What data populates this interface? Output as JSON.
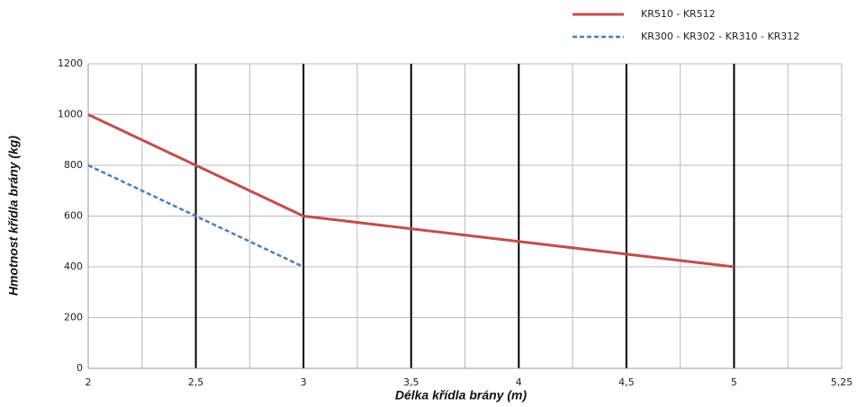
{
  "chart_data": {
    "type": "line",
    "x_label": "Délka křídla brány (m)",
    "y_label": "Hmotnost křídla brány (kg)",
    "categories": [
      "2",
      "2,5",
      "3",
      "3,5",
      "4",
      "4,5",
      "5",
      "5,25"
    ],
    "series": [
      {
        "name": "KR510 - KR512",
        "color": "#c0504d",
        "dash": false,
        "values": [
          1000,
          800,
          600,
          550,
          500,
          450,
          400,
          null
        ]
      },
      {
        "name": "KR300  - KR302 - KR310 - KR312",
        "color": "#4a7ebb",
        "dash": true,
        "values": [
          800,
          600,
          400,
          null,
          null,
          null,
          null,
          null
        ]
      }
    ],
    "ylim": [
      0,
      1200
    ],
    "yticks": [
      0,
      200,
      400,
      600,
      800,
      1000,
      1200
    ],
    "grid": true
  }
}
